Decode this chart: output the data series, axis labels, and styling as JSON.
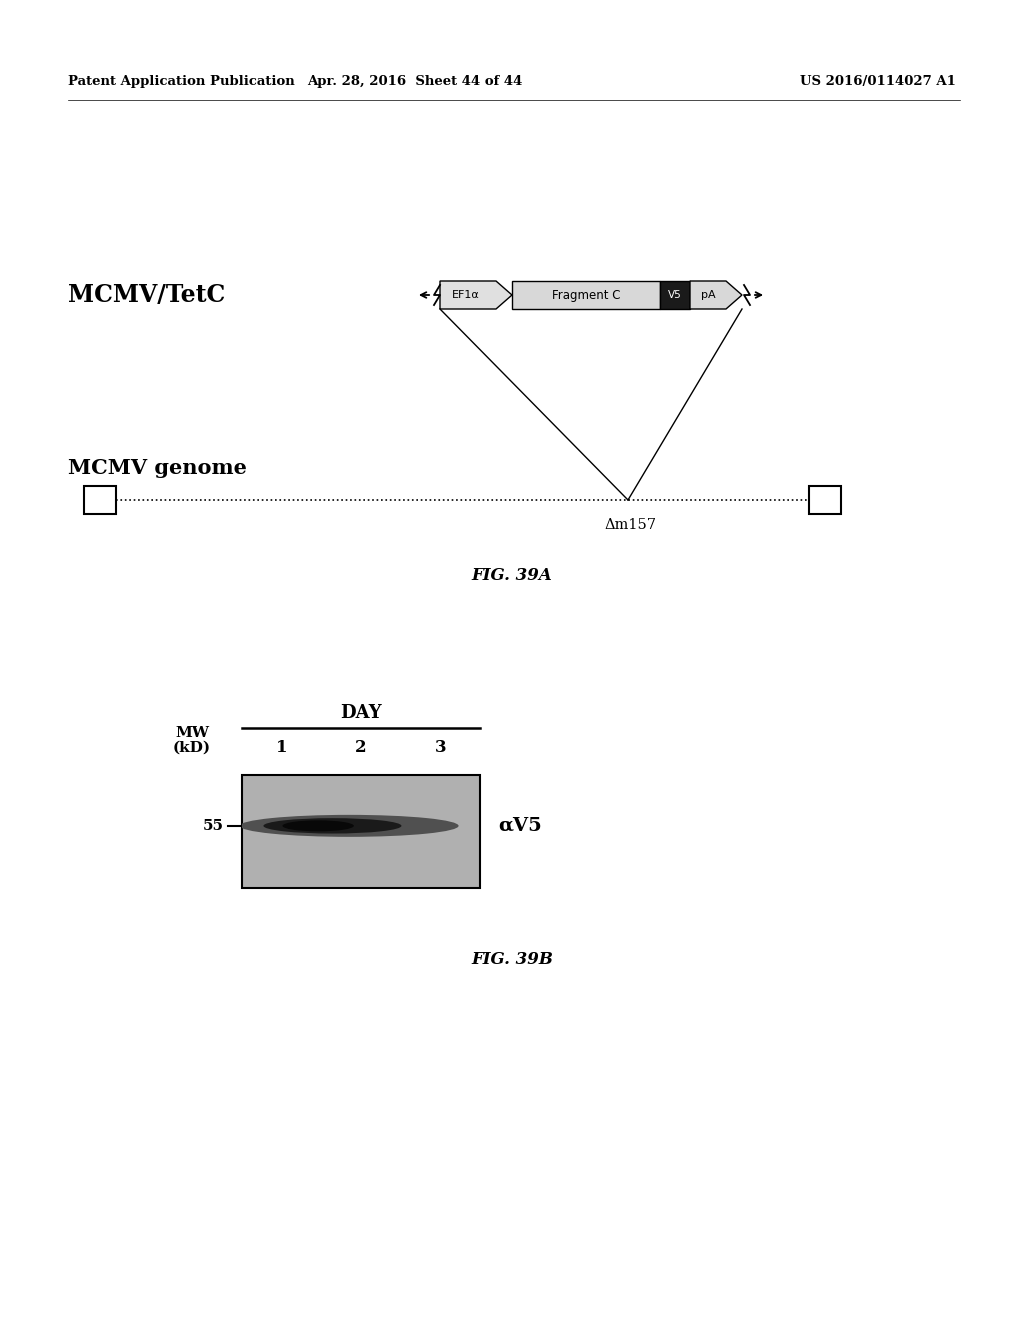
{
  "header_left": "Patent Application Publication",
  "header_mid": "Apr. 28, 2016  Sheet 44 of 44",
  "header_right": "US 2016/0114027 A1",
  "fig39a_label": "FIG. 39A",
  "fig39b_label": "FIG. 39B",
  "mcmv_tetc_label": "MCMV/TetC",
  "mcmv_genome_label": "MCMV genome",
  "ef1a_label": "EF1α",
  "fragment_c_label": "Fragment C",
  "v5_label": "V5",
  "pa_label": "pA",
  "delta_m157_label": "Δm157",
  "mw_label": "MW",
  "kd_label": "(kD)",
  "day_label": "DAY",
  "lane1": "1",
  "lane2": "2",
  "lane3": "3",
  "mw_55": "55",
  "av5_label": "αV5",
  "bg_color": "#ffffff",
  "text_color": "#000000"
}
